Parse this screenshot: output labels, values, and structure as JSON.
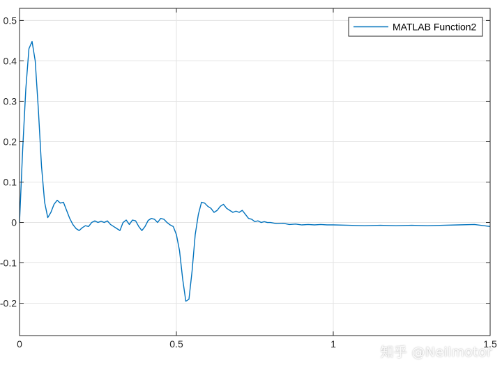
{
  "chart_data": {
    "type": "line",
    "title": "",
    "xlabel": "",
    "ylabel": "",
    "xlim": [
      0,
      1.5
    ],
    "ylim": [
      -0.28,
      0.53
    ],
    "grid": true,
    "legend_position": "top-right",
    "xticks": [
      0,
      0.5,
      1,
      1.5
    ],
    "xtick_labels": [
      "0",
      "0.5",
      "1",
      "1.5"
    ],
    "yticks": [
      -0.2,
      -0.1,
      0,
      0.1,
      0.2,
      0.3,
      0.4,
      0.5
    ],
    "ytick_labels": [
      "-0.2",
      "-0.1",
      "0",
      "0.1",
      "0.2",
      "0.3",
      "0.4",
      "0.5"
    ],
    "series": [
      {
        "name": "MATLAB Function2",
        "color": "#0072BD",
        "x": [
          0,
          0.01,
          0.02,
          0.03,
          0.04,
          0.05,
          0.06,
          0.07,
          0.08,
          0.09,
          0.1,
          0.11,
          0.12,
          0.13,
          0.14,
          0.15,
          0.16,
          0.17,
          0.18,
          0.19,
          0.2,
          0.21,
          0.22,
          0.23,
          0.24,
          0.25,
          0.26,
          0.27,
          0.28,
          0.29,
          0.3,
          0.31,
          0.32,
          0.33,
          0.34,
          0.35,
          0.36,
          0.37,
          0.38,
          0.39,
          0.4,
          0.41,
          0.42,
          0.43,
          0.44,
          0.45,
          0.46,
          0.47,
          0.48,
          0.49,
          0.5,
          0.51,
          0.52,
          0.53,
          0.54,
          0.55,
          0.56,
          0.57,
          0.58,
          0.59,
          0.6,
          0.61,
          0.62,
          0.63,
          0.64,
          0.65,
          0.66,
          0.67,
          0.68,
          0.69,
          0.7,
          0.71,
          0.72,
          0.73,
          0.74,
          0.75,
          0.76,
          0.77,
          0.78,
          0.79,
          0.8,
          0.82,
          0.84,
          0.86,
          0.88,
          0.9,
          0.92,
          0.94,
          0.96,
          0.98,
          1.0,
          1.05,
          1.1,
          1.15,
          1.2,
          1.25,
          1.3,
          1.35,
          1.4,
          1.45,
          1.5
        ],
        "y": [
          0.0,
          0.18,
          0.33,
          0.43,
          0.448,
          0.4,
          0.28,
          0.14,
          0.05,
          0.012,
          0.025,
          0.045,
          0.055,
          0.048,
          0.05,
          0.03,
          0.01,
          -0.005,
          -0.015,
          -0.02,
          -0.013,
          -0.008,
          -0.01,
          0.0,
          0.004,
          0.0,
          0.003,
          0.0,
          0.004,
          -0.005,
          -0.01,
          -0.015,
          -0.02,
          0.0,
          0.006,
          -0.005,
          0.006,
          0.004,
          -0.01,
          -0.02,
          -0.01,
          0.005,
          0.01,
          0.008,
          0.0,
          0.01,
          0.008,
          0.0,
          -0.006,
          -0.01,
          -0.03,
          -0.07,
          -0.14,
          -0.195,
          -0.19,
          -0.12,
          -0.03,
          0.02,
          0.05,
          0.048,
          0.04,
          0.035,
          0.025,
          0.03,
          0.04,
          0.045,
          0.035,
          0.03,
          0.025,
          0.028,
          0.025,
          0.03,
          0.02,
          0.01,
          0.008,
          0.002,
          0.004,
          0.0,
          0.002,
          0.0,
          0.0,
          -0.003,
          -0.002,
          -0.005,
          -0.004,
          -0.006,
          -0.005,
          -0.006,
          -0.005,
          -0.006,
          -0.006,
          -0.007,
          -0.008,
          -0.007,
          -0.008,
          -0.007,
          -0.008,
          -0.007,
          -0.006,
          -0.005,
          -0.01
        ]
      }
    ]
  },
  "watermark": "知乎 @Neilmotor"
}
